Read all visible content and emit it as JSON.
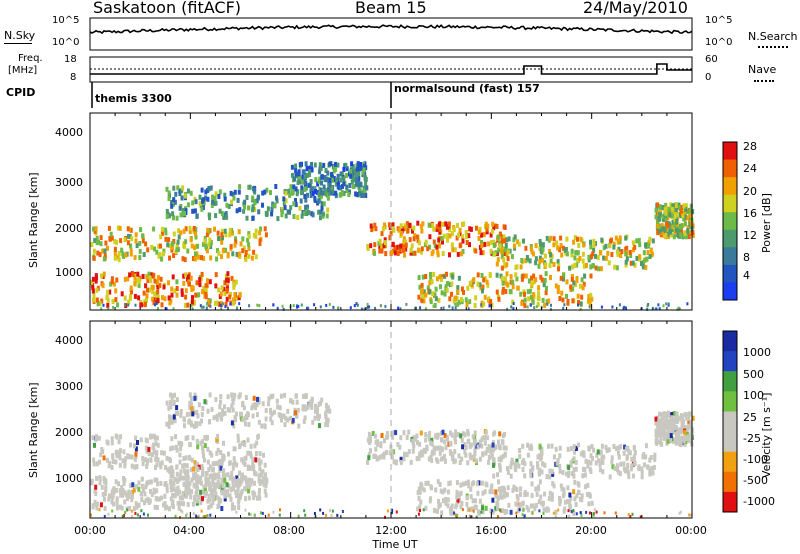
{
  "header": {
    "station": "Saskatoon (fitACF)",
    "beam": "Beam 15",
    "date": "24/May/2010"
  },
  "noise_panel": {
    "left_label": "N.Sky",
    "right_label": "N.Search",
    "tick_top_left": "10^5",
    "tick_bottom_left": "10^0",
    "tick_top_right": "10^5",
    "tick_bottom_right": "10^0"
  },
  "freq_panel": {
    "left_label_1": "Freq.",
    "left_label_2": "[MHz]",
    "right_label": "Nave",
    "tick_top_left": "18",
    "tick_bottom_left": "8",
    "tick_top_right": "60",
    "tick_bottom_right": "0"
  },
  "cpid": {
    "label": "CPID",
    "segment1": "themis 3300",
    "segment2": "normalsound (fast) 157"
  },
  "power_panel": {
    "ylabel": "Slant Range [km]",
    "colorbar_label": "Power [dB]",
    "colorbar_ticks": [
      "28",
      "24",
      "20",
      "16",
      "12",
      "8",
      "4"
    ]
  },
  "velocity_panel": {
    "ylabel": "Slant Range [km]",
    "colorbar_label": "Velocity [m s⁻¹]",
    "colorbar_ticks": [
      "1000",
      "500",
      "100",
      "25",
      "-25",
      "-100",
      "-500",
      "-1000"
    ]
  },
  "xaxis": {
    "label": "Time UT",
    "ticks": [
      "00:00",
      "04:00",
      "08:00",
      "12:00",
      "16:00",
      "20:00",
      "00:00"
    ]
  },
  "yaxis_ticks": [
    "4000",
    "3000",
    "2000",
    "1000"
  ],
  "chart_data": [
    {
      "type": "heatmap",
      "title": "Saskatoon (fitACF) Beam 15 24/May/2010",
      "xlabel": "Time UT",
      "ylabel": "Slant Range [km]",
      "xlim": [
        0,
        24
      ],
      "ylim": [
        200,
        4500
      ],
      "colorbar": "Power [dB]",
      "clim": [
        0,
        30
      ],
      "echo_bands": [
        {
          "t_start": 0.0,
          "t_end": 7.0,
          "range_center": 1700,
          "power": 20
        },
        {
          "t_start": 0.0,
          "t_end": 6.0,
          "range_center": 700,
          "power": 24
        },
        {
          "t_start": 3.0,
          "t_end": 9.5,
          "range_center": 2600,
          "power": 10
        },
        {
          "t_start": 8.0,
          "t_end": 11.0,
          "range_center": 3100,
          "power": 8
        },
        {
          "t_start": 11.0,
          "t_end": 16.5,
          "range_center": 1800,
          "power": 24
        },
        {
          "t_start": 13.0,
          "t_end": 20.0,
          "range_center": 700,
          "power": 20
        },
        {
          "t_start": 16.0,
          "t_end": 22.5,
          "range_center": 1500,
          "power": 18
        },
        {
          "t_start": 22.5,
          "t_end": 24.0,
          "range_center": 2200,
          "power": 18
        }
      ]
    },
    {
      "type": "heatmap",
      "title": "Saskatoon (fitACF) Beam 15 24/May/2010",
      "xlabel": "Time UT",
      "ylabel": "Slant Range [km]",
      "xlim": [
        0,
        24
      ],
      "ylim": [
        200,
        4500
      ],
      "colorbar": "Velocity [m s⁻¹]",
      "clim": [
        -1000,
        1000
      ],
      "echo_bands": [
        {
          "t_start": 0.0,
          "t_end": 7.0,
          "range_center": 1700,
          "velocity": 0
        },
        {
          "t_start": 0.0,
          "t_end": 6.0,
          "range_center": 800,
          "velocity": 0
        },
        {
          "t_start": 3.0,
          "t_end": 7.0,
          "range_center": 1000,
          "velocity": -100
        },
        {
          "t_start": 3.0,
          "t_end": 9.5,
          "range_center": 2600,
          "velocity": 0
        },
        {
          "t_start": 11.0,
          "t_end": 16.5,
          "range_center": 1800,
          "velocity": 0
        },
        {
          "t_start": 13.0,
          "t_end": 20.0,
          "range_center": 700,
          "velocity": 0
        },
        {
          "t_start": 16.0,
          "t_end": 22.5,
          "range_center": 1500,
          "velocity": 0
        },
        {
          "t_start": 22.5,
          "t_end": 24.0,
          "range_center": 2200,
          "velocity": 0
        }
      ]
    }
  ],
  "colors": {
    "power_scale": [
      "#1a3ef0",
      "#2255c0",
      "#3a7a9a",
      "#4c9a6e",
      "#6cba48",
      "#d0d020",
      "#f0a000",
      "#f06000",
      "#e01010"
    ],
    "velocity_scale": [
      "#e01010",
      "#f07000",
      "#f0a010",
      "#c8c8c0",
      "#c8c8c0",
      "#70c040",
      "#40a040",
      "#2244c0",
      "#1a2aa0"
    ],
    "ground_scatter": "#c8c8c0"
  }
}
